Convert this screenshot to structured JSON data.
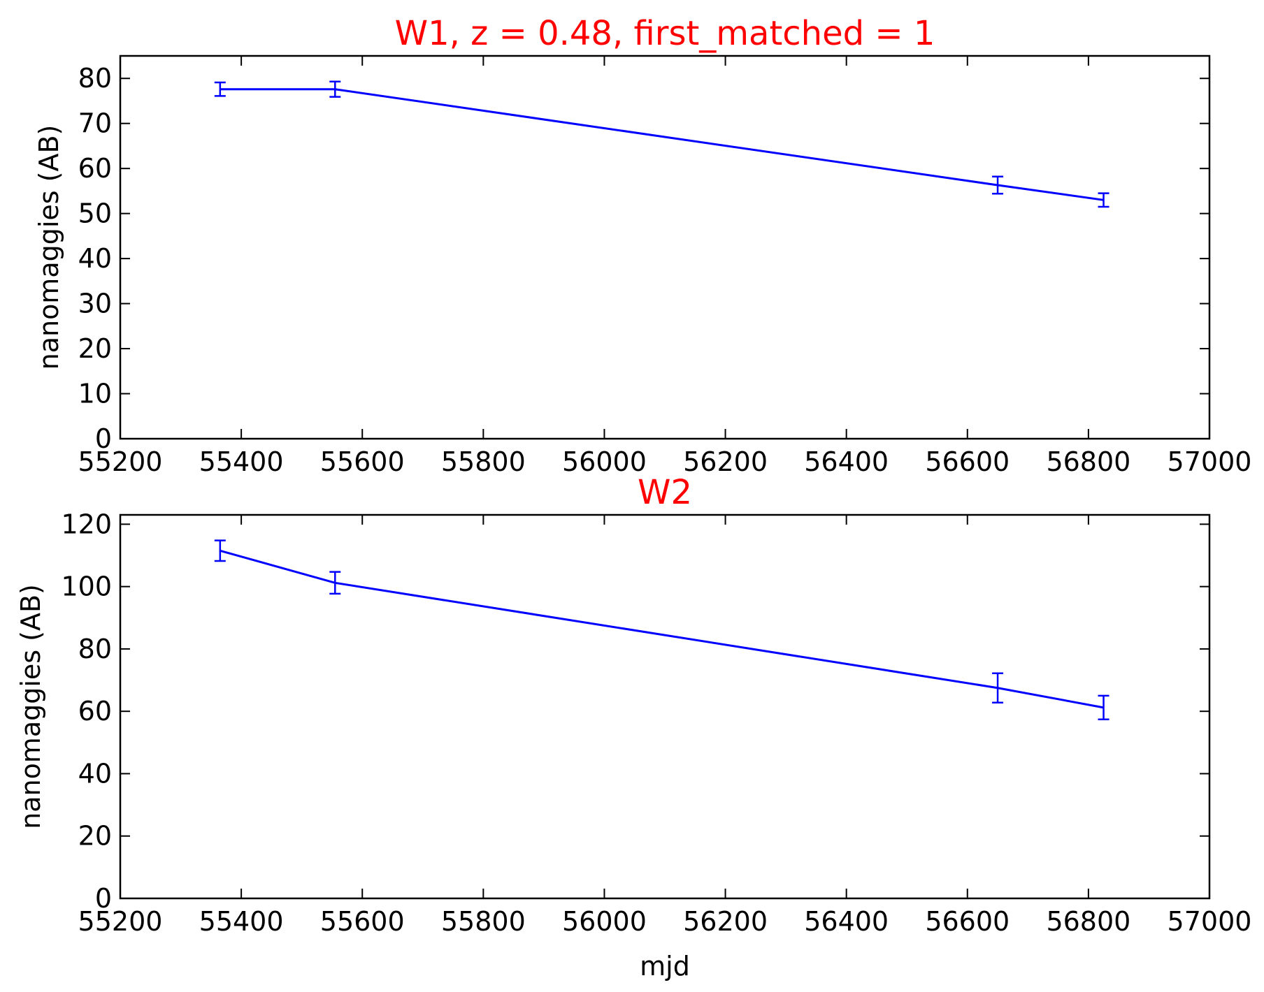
{
  "chart_data": [
    {
      "type": "line",
      "title": "W1, z = 0.48, first_matched = 1",
      "title_color": "#ff0000",
      "xlabel": "",
      "ylabel": "nanomaggies (AB)",
      "xlim": [
        55200,
        57000
      ],
      "ylim": [
        0,
        85
      ],
      "xticks": [
        55200,
        55400,
        55600,
        55800,
        56000,
        56200,
        56400,
        56600,
        56800,
        57000
      ],
      "yticks": [
        0,
        10,
        20,
        30,
        40,
        50,
        60,
        70,
        80
      ],
      "grid": false,
      "series": [
        {
          "color": "#0000ff",
          "x": [
            55365,
            55555,
            56650,
            56825
          ],
          "y": [
            77.6,
            77.6,
            56.3,
            53.0
          ],
          "yerr": [
            1.5,
            1.7,
            1.9,
            1.5
          ]
        }
      ]
    },
    {
      "type": "line",
      "title": "W2",
      "title_color": "#ff0000",
      "xlabel": "mjd",
      "ylabel": "nanomaggies (AB)",
      "xlim": [
        55200,
        57000
      ],
      "ylim": [
        0,
        123
      ],
      "xticks": [
        55200,
        55400,
        55600,
        55800,
        56000,
        56200,
        56400,
        56600,
        56800,
        57000
      ],
      "yticks": [
        0,
        20,
        40,
        60,
        80,
        100,
        120
      ],
      "grid": false,
      "series": [
        {
          "color": "#0000ff",
          "x": [
            55365,
            55555,
            56650,
            56825
          ],
          "y": [
            111.5,
            101.2,
            67.5,
            61.2
          ],
          "yerr": [
            3.3,
            3.5,
            4.7,
            3.8
          ]
        }
      ]
    }
  ]
}
